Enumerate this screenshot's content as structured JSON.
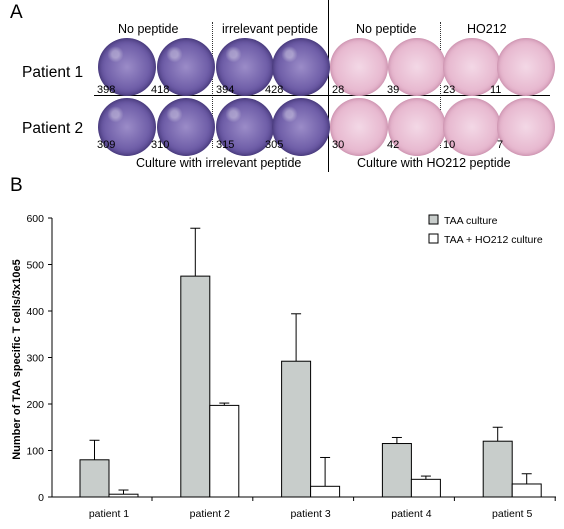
{
  "panelA": {
    "letter": "A",
    "group_headers": [
      "No peptide",
      "irrelevant peptide",
      "No peptide",
      "HO212"
    ],
    "rows": [
      {
        "label": "Patient 1",
        "counts": [
          "398",
          "418",
          "394",
          "428",
          "28",
          "39",
          "23",
          "11"
        ]
      },
      {
        "label": "Patient 2",
        "counts": [
          "309",
          "310",
          "315",
          "305",
          "30",
          "42",
          "10",
          "7"
        ]
      }
    ],
    "captions": [
      "Culture with irrelevant peptide",
      "Culture with HO212 peptide"
    ],
    "well_colors": {
      "irrelevant": "#6f5ea8",
      "ho212": "#e7b8cf"
    }
  },
  "panelB": {
    "letter": "B"
  },
  "chart_data": {
    "type": "bar",
    "categories": [
      "patient 1",
      "patient 2",
      "patient 3",
      "patient 4",
      "patient 5"
    ],
    "series": [
      {
        "name": "TAA culture",
        "values": [
          80,
          475,
          292,
          115,
          120
        ],
        "errors": [
          42,
          103,
          102,
          13,
          30
        ],
        "color": "#c8cdcb"
      },
      {
        "name": "TAA + HO212 culture",
        "values": [
          6,
          197,
          23,
          38,
          28
        ],
        "errors": [
          9,
          5,
          62,
          7,
          22
        ],
        "color": "#ffffff"
      }
    ],
    "ylabel": "Number of TAA specific T cells/3x10e5",
    "xlabel": "",
    "ylim": [
      0,
      600
    ],
    "yticks": [
      0,
      100,
      200,
      300,
      400,
      500,
      600
    ],
    "legend_position": "top-right"
  }
}
